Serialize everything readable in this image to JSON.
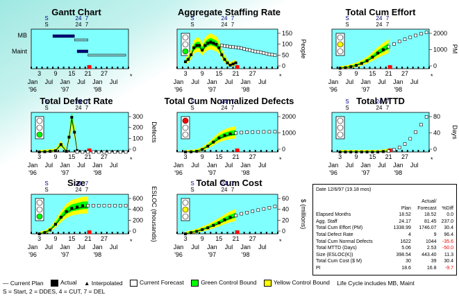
{
  "colors": {
    "plot_bg": "#80ffff",
    "green_bound": "#00ff00",
    "yellow_bound": "#ffff00",
    "plan": "#000000",
    "marker": "#000080",
    "status": "#ff0000",
    "milestone": "#000080"
  },
  "milestones": {
    "top_letters": [
      "S",
      "24",
      "7"
    ],
    "second_letters": [
      "S",
      "24",
      "7"
    ]
  },
  "x_tick_labels": [
    "3",
    "9",
    "15",
    "21",
    "27"
  ],
  "x_month_labels": [
    "Jan",
    "Jul",
    "Jan",
    "Jul",
    "Jan",
    "Jul"
  ],
  "x_year_labels": [
    "'96",
    "'97",
    "'98"
  ],
  "panels": [
    {
      "id": "gantt",
      "title": "Gantt Chart",
      "rows": [
        "MB",
        "Maint"
      ]
    },
    {
      "id": "staffing",
      "title": "Aggregate Staffing Rate",
      "ylabel": "People",
      "yticks": [
        "150",
        "100",
        "50",
        "0"
      ]
    },
    {
      "id": "effort",
      "title": "Total Cum Effort",
      "ylabel": "PM",
      "yticks": [
        "2000",
        "1000",
        "0"
      ]
    },
    {
      "id": "defects",
      "title": "Total Defect Rate",
      "ylabel": "Defects",
      "yticks": [
        "300",
        "200",
        "100",
        "0"
      ]
    },
    {
      "id": "normdefects",
      "title": "Total Cum Normalized Defects",
      "ylabel": "",
      "yticks": [
        "2000",
        "1000",
        "0"
      ]
    },
    {
      "id": "mttd",
      "title": "Total MTTD",
      "ylabel": "Days",
      "yticks": [
        "80",
        "40",
        "0"
      ]
    },
    {
      "id": "size",
      "title": "Size",
      "ylabel": "ESLOC (thousands)",
      "yticks": [
        "600",
        "400",
        "200",
        "0"
      ]
    },
    {
      "id": "cost",
      "title": "Total Cum Cost",
      "ylabel": "$ (millions)",
      "yticks": [
        "60",
        "40",
        "20",
        "0"
      ]
    }
  ],
  "chart_data": [
    {
      "type": "bar",
      "title": "Gantt Chart",
      "categories": [
        "MB",
        "Maint"
      ],
      "x_months": [
        1,
        36
      ],
      "series": [
        {
          "name": "MB",
          "plan": [
            8,
            16
          ],
          "forecast": [
            16,
            21
          ]
        },
        {
          "name": "Maint",
          "plan": [
            17,
            21
          ],
          "forecast": [
            21,
            35
          ]
        }
      ]
    },
    {
      "type": "line",
      "title": "Aggregate Staffing Rate",
      "ylabel": "People",
      "ylim": [
        0,
        170
      ],
      "x": [
        3,
        4,
        5,
        6,
        7,
        8,
        9,
        10,
        11,
        12,
        13,
        14,
        15,
        16,
        17,
        18,
        19,
        20,
        21
      ],
      "actual": [
        30,
        40,
        60,
        90,
        100,
        100,
        80,
        100,
        110,
        115,
        110,
        105,
        90,
        60,
        40,
        25,
        15,
        20,
        25
      ],
      "forecast_x": [
        16,
        17,
        18,
        19,
        20,
        21,
        22,
        23,
        24,
        25,
        26,
        27,
        28,
        29,
        30,
        31,
        32,
        33,
        34,
        35
      ],
      "forecast": [
        100,
        98,
        96,
        94,
        93,
        92,
        90,
        88,
        85,
        82,
        80,
        77,
        74,
        72,
        70,
        67,
        65,
        62,
        60,
        58
      ]
    },
    {
      "type": "line",
      "title": "Total Cum Effort",
      "ylabel": "PM",
      "ylim": [
        0,
        2400
      ],
      "x": [
        3,
        5,
        7,
        9,
        11,
        13,
        15,
        17,
        19,
        21
      ],
      "actual": [
        30,
        60,
        120,
        200,
        320,
        480,
        700,
        950,
        1150,
        1340
      ],
      "forecast_x": [
        21,
        23,
        25,
        27,
        29,
        31,
        33,
        35
      ],
      "forecast": [
        1340,
        1500,
        1650,
        1780,
        1900,
        2020,
        2120,
        2200
      ]
    },
    {
      "type": "line",
      "title": "Total Defect Rate",
      "ylabel": "Defects",
      "ylim": [
        0,
        320
      ],
      "x": [
        3,
        5,
        7,
        9,
        11,
        13,
        14,
        15,
        16,
        17
      ],
      "actual": [
        0,
        2,
        5,
        10,
        60,
        5,
        120,
        280,
        160,
        10
      ],
      "forecast_x": [
        17,
        19,
        21,
        23,
        25,
        27,
        29,
        31,
        33,
        35
      ],
      "forecast": [
        0,
        0,
        0,
        0,
        0,
        0,
        0,
        0,
        0,
        0
      ]
    },
    {
      "type": "line",
      "title": "Total Cum Normalized Defects",
      "ylabel": "",
      "ylim": [
        0,
        2400
      ],
      "x": [
        3,
        5,
        7,
        9,
        11,
        13,
        15,
        17,
        19,
        21
      ],
      "actual": [
        0,
        10,
        40,
        150,
        350,
        600,
        850,
        1000,
        1100,
        1150
      ],
      "forecast_x": [
        21,
        23,
        25,
        27,
        29,
        31,
        33,
        35
      ],
      "forecast": [
        1150,
        1180,
        1200,
        1210,
        1215,
        1220,
        1225,
        1230
      ]
    },
    {
      "type": "line",
      "title": "Total MTTD",
      "ylabel": "Days",
      "ylim": [
        0,
        90
      ],
      "x": [
        3,
        5,
        7,
        9,
        11,
        13,
        15,
        17,
        19,
        21
      ],
      "actual": [
        0,
        0,
        0,
        0,
        0,
        0,
        0,
        0,
        1,
        2
      ],
      "forecast_x": [
        21,
        23,
        25,
        27,
        29,
        31,
        33,
        35
      ],
      "forecast": [
        2,
        5,
        10,
        18,
        30,
        45,
        62,
        80
      ]
    },
    {
      "type": "line",
      "title": "Size",
      "ylabel": "ESLOC (thousands)",
      "ylim": [
        0,
        620
      ],
      "x": [
        3,
        5,
        7,
        9,
        11,
        13,
        15,
        17,
        19,
        21
      ],
      "actual": [
        0,
        20,
        60,
        150,
        260,
        350,
        400,
        420,
        440,
        443
      ],
      "forecast_x": [
        21,
        23,
        25,
        27,
        29,
        31,
        33,
        35
      ],
      "forecast": [
        443,
        443,
        443,
        443,
        443,
        443,
        443,
        443
      ]
    },
    {
      "type": "line",
      "title": "Total Cum Cost",
      "ylabel": "$ (millions)",
      "ylim": [
        0,
        65
      ],
      "x": [
        3,
        5,
        7,
        9,
        11,
        13,
        15,
        17,
        19,
        21
      ],
      "actual": [
        0,
        2,
        4,
        7,
        10,
        14,
        18,
        23,
        27,
        30
      ],
      "forecast_x": [
        21,
        23,
        25,
        27,
        29,
        31,
        33,
        35
      ],
      "forecast": [
        30,
        33,
        35,
        37,
        39,
        41,
        43,
        45
      ]
    }
  ],
  "summary": {
    "date": "Date 12/6/97  (19.18 mos)",
    "col_actual_top": "Actual/",
    "cols": [
      "Plan",
      "Forecast",
      "%Diff"
    ],
    "rows": [
      {
        "label": "Elapsed Months",
        "plan": "18.52",
        "forecast": "18.52",
        "diff": "0.0",
        "neg": false
      },
      {
        "label": "Agg. Staff",
        "plan": "24.17",
        "forecast": "81.45",
        "diff": "237.0",
        "neg": false
      },
      {
        "label": "Total Cum Effort (PM)",
        "plan": "1338.99",
        "forecast": "1746.07",
        "diff": "30.4",
        "neg": false
      },
      {
        "label": "Total Defect Rate",
        "plan": "4",
        "forecast": "9",
        "diff": "96.4",
        "neg": false
      },
      {
        "label": "Total Cum Normal Defects",
        "plan": "1622",
        "forecast": "1044",
        "diff": "-35.6",
        "neg": true
      },
      {
        "label": "Total MTTD (Days)",
        "plan": "5.06",
        "forecast": "2.53",
        "diff": "-50.0",
        "neg": true
      },
      {
        "label": "Size (ESLOC(K))",
        "plan": "398.54",
        "forecast": "443.40",
        "diff": "11.3",
        "neg": false
      },
      {
        "label": "Total Cum Cost ($ M)",
        "plan": "30",
        "forecast": "39",
        "diff": "30.4",
        "neg": false
      },
      {
        "label": "PI",
        "plan": "18.6",
        "forecast": "16.8",
        "diff": "-9.7",
        "neg": true
      }
    ]
  },
  "legend": {
    "items": [
      "Current Plan",
      "Actual",
      "Interpolated",
      "Current Forecast",
      "Green Control Bound",
      "Yellow Control Bound"
    ],
    "lifecycle": "Life Cycle includes MB, Maint",
    "key": "S = Start,  2 = DDES,  4 = CUT,  7 = DEL"
  }
}
